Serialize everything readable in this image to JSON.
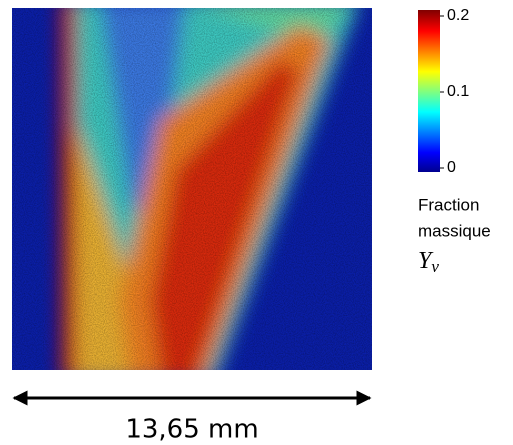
{
  "colorbar": {
    "lim": [
      0,
      0.2
    ],
    "ticks": [
      0,
      0.1,
      0.2
    ],
    "label_lines": [
      "Fraction",
      "massique"
    ],
    "symbol": "Y",
    "subscript": "v"
  },
  "scale_bar": {
    "label": "13,65 mm"
  }
}
